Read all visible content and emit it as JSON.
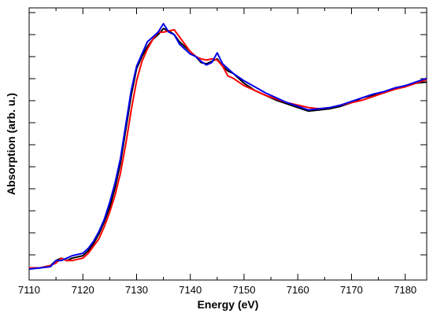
{
  "chart_data": {
    "type": "line",
    "title": "",
    "xlabel": "Energy (eV)",
    "ylabel": "Absorption (arb. u.)",
    "xlim": [
      7110,
      7184
    ],
    "ylim": [
      -0.04,
      1.08
    ],
    "x_ticks": [
      7110,
      7120,
      7130,
      7140,
      7150,
      7160,
      7170,
      7180
    ],
    "y_tick_labels_shown": false,
    "grid": false,
    "legend": "none",
    "series": [
      {
        "color": "#000000",
        "points": [
          [
            7110,
            0.01
          ],
          [
            7112,
            0.01
          ],
          [
            7114,
            0.02
          ],
          [
            7115,
            0.04
          ],
          [
            7116,
            0.05
          ],
          [
            7117,
            0.04
          ],
          [
            7118,
            0.05
          ],
          [
            7120,
            0.06
          ],
          [
            7121,
            0.08
          ],
          [
            7122,
            0.11
          ],
          [
            7123,
            0.15
          ],
          [
            7124,
            0.2
          ],
          [
            7125,
            0.26
          ],
          [
            7126,
            0.34
          ],
          [
            7127,
            0.44
          ],
          [
            7128,
            0.58
          ],
          [
            7129,
            0.72
          ],
          [
            7130,
            0.83
          ],
          [
            7131,
            0.88
          ],
          [
            7132,
            0.92
          ],
          [
            7133,
            0.95
          ],
          [
            7134,
            0.97
          ],
          [
            7135,
            0.995
          ],
          [
            7136,
            0.985
          ],
          [
            7137,
            0.97
          ],
          [
            7138,
            0.94
          ],
          [
            7139,
            0.92
          ],
          [
            7140,
            0.9
          ],
          [
            7141,
            0.88
          ],
          [
            7142,
            0.855
          ],
          [
            7143,
            0.85
          ],
          [
            7144,
            0.86
          ],
          [
            7145,
            0.87
          ],
          [
            7146,
            0.84
          ],
          [
            7147,
            0.82
          ],
          [
            7148,
            0.81
          ],
          [
            7150,
            0.77
          ],
          [
            7152,
            0.74
          ],
          [
            7154,
            0.72
          ],
          [
            7156,
            0.7
          ],
          [
            7158,
            0.685
          ],
          [
            7160,
            0.67
          ],
          [
            7162,
            0.655
          ],
          [
            7164,
            0.66
          ],
          [
            7166,
            0.665
          ],
          [
            7168,
            0.675
          ],
          [
            7170,
            0.69
          ],
          [
            7172,
            0.71
          ],
          [
            7174,
            0.72
          ],
          [
            7176,
            0.73
          ],
          [
            7178,
            0.745
          ],
          [
            7180,
            0.76
          ],
          [
            7182,
            0.77
          ],
          [
            7184,
            0.775
          ]
        ]
      },
      {
        "color": "#ff0000",
        "points": [
          [
            7110,
            0.01
          ],
          [
            7112,
            0.01
          ],
          [
            7114,
            0.02
          ],
          [
            7115,
            0.03
          ],
          [
            7116,
            0.05
          ],
          [
            7117,
            0.04
          ],
          [
            7118,
            0.04
          ],
          [
            7120,
            0.05
          ],
          [
            7121,
            0.07
          ],
          [
            7122,
            0.1
          ],
          [
            7123,
            0.13
          ],
          [
            7124,
            0.18
          ],
          [
            7125,
            0.24
          ],
          [
            7126,
            0.31
          ],
          [
            7127,
            0.4
          ],
          [
            7128,
            0.52
          ],
          [
            7129,
            0.66
          ],
          [
            7130,
            0.78
          ],
          [
            7131,
            0.86
          ],
          [
            7132,
            0.91
          ],
          [
            7133,
            0.95
          ],
          [
            7134,
            0.98
          ],
          [
            7135,
            0.98
          ],
          [
            7136,
            0.985
          ],
          [
            7137,
            0.99
          ],
          [
            7138,
            0.96
          ],
          [
            7139,
            0.93
          ],
          [
            7140,
            0.9
          ],
          [
            7141,
            0.88
          ],
          [
            7142,
            0.87
          ],
          [
            7143,
            0.865
          ],
          [
            7144,
            0.87
          ],
          [
            7145,
            0.865
          ],
          [
            7146,
            0.84
          ],
          [
            7147,
            0.8
          ],
          [
            7148,
            0.79
          ],
          [
            7150,
            0.76
          ],
          [
            7152,
            0.74
          ],
          [
            7154,
            0.72
          ],
          [
            7156,
            0.705
          ],
          [
            7158,
            0.69
          ],
          [
            7160,
            0.68
          ],
          [
            7162,
            0.67
          ],
          [
            7164,
            0.665
          ],
          [
            7166,
            0.67
          ],
          [
            7168,
            0.68
          ],
          [
            7170,
            0.69
          ],
          [
            7172,
            0.7
          ],
          [
            7174,
            0.715
          ],
          [
            7176,
            0.73
          ],
          [
            7178,
            0.745
          ],
          [
            7180,
            0.755
          ],
          [
            7182,
            0.77
          ],
          [
            7184,
            0.785
          ]
        ]
      },
      {
        "color": "#0000ee",
        "points": [
          [
            7110,
            0.005
          ],
          [
            7112,
            0.01
          ],
          [
            7114,
            0.015
          ],
          [
            7115,
            0.04
          ],
          [
            7116,
            0.04
          ],
          [
            7117,
            0.05
          ],
          [
            7118,
            0.06
          ],
          [
            7120,
            0.07
          ],
          [
            7121,
            0.09
          ],
          [
            7122,
            0.12
          ],
          [
            7123,
            0.16
          ],
          [
            7124,
            0.21
          ],
          [
            7125,
            0.28
          ],
          [
            7126,
            0.36
          ],
          [
            7127,
            0.46
          ],
          [
            7128,
            0.6
          ],
          [
            7129,
            0.74
          ],
          [
            7130,
            0.84
          ],
          [
            7131,
            0.89
          ],
          [
            7132,
            0.94
          ],
          [
            7133,
            0.96
          ],
          [
            7134,
            0.98
          ],
          [
            7135,
            1.015
          ],
          [
            7136,
            0.98
          ],
          [
            7137,
            0.97
          ],
          [
            7138,
            0.93
          ],
          [
            7139,
            0.91
          ],
          [
            7140,
            0.89
          ],
          [
            7141,
            0.88
          ],
          [
            7142,
            0.86
          ],
          [
            7143,
            0.845
          ],
          [
            7144,
            0.855
          ],
          [
            7145,
            0.895
          ],
          [
            7146,
            0.85
          ],
          [
            7147,
            0.83
          ],
          [
            7148,
            0.81
          ],
          [
            7150,
            0.78
          ],
          [
            7152,
            0.755
          ],
          [
            7154,
            0.73
          ],
          [
            7156,
            0.71
          ],
          [
            7158,
            0.69
          ],
          [
            7160,
            0.675
          ],
          [
            7162,
            0.66
          ],
          [
            7164,
            0.665
          ],
          [
            7166,
            0.67
          ],
          [
            7168,
            0.68
          ],
          [
            7170,
            0.695
          ],
          [
            7172,
            0.71
          ],
          [
            7174,
            0.725
          ],
          [
            7176,
            0.735
          ],
          [
            7178,
            0.75
          ],
          [
            7180,
            0.76
          ],
          [
            7182,
            0.775
          ],
          [
            7184,
            0.79
          ]
        ]
      }
    ]
  }
}
